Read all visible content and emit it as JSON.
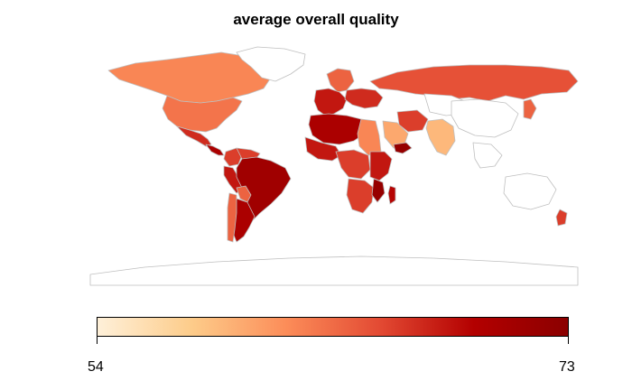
{
  "title": "average overall quality",
  "legend": {
    "min_label": "54",
    "max_label": "73",
    "min_value": 54,
    "max_value": 73,
    "colors": [
      "#fef0d9",
      "#fdcc8a",
      "#fc8d59",
      "#e34a33",
      "#b30000",
      "#8b0000"
    ]
  },
  "palette": {
    "no_data_fill": "#ffffff",
    "border": "#bfbfbf",
    "ocean": "#ffffff"
  },
  "regions": [
    {
      "name": "Canada",
      "value": 62
    },
    {
      "name": "United States",
      "value": 63
    },
    {
      "name": "Greenland",
      "value": null
    },
    {
      "name": "Mexico",
      "value": 67
    },
    {
      "name": "Central America",
      "value": 70
    },
    {
      "name": "Colombia",
      "value": 66
    },
    {
      "name": "Venezuela",
      "value": 66
    },
    {
      "name": "Peru",
      "value": 68
    },
    {
      "name": "Brazil",
      "value": 71
    },
    {
      "name": "Bolivia",
      "value": 64
    },
    {
      "name": "Argentina",
      "value": 70
    },
    {
      "name": "Chile",
      "value": 64
    },
    {
      "name": "Russia",
      "value": 65
    },
    {
      "name": "Scandinavia",
      "value": 64
    },
    {
      "name": "Western Europe",
      "value": 68
    },
    {
      "name": "Eastern Europe",
      "value": 67
    },
    {
      "name": "North Africa",
      "value": 70
    },
    {
      "name": "West Africa",
      "value": 68
    },
    {
      "name": "Egypt/Sudan",
      "value": 62
    },
    {
      "name": "Central Africa",
      "value": 66
    },
    {
      "name": "East Africa",
      "value": 68
    },
    {
      "name": "Southern Africa",
      "value": 66
    },
    {
      "name": "Mozambique",
      "value": 72
    },
    {
      "name": "Madagascar",
      "value": 69
    },
    {
      "name": "Arabian Peninsula",
      "value": 60
    },
    {
      "name": "Yemen",
      "value": 72
    },
    {
      "name": "Iran",
      "value": 66
    },
    {
      "name": "Central Asia",
      "value": null
    },
    {
      "name": "India",
      "value": 59
    },
    {
      "name": "China",
      "value": null
    },
    {
      "name": "Japan",
      "value": 64
    },
    {
      "name": "Southeast Asia",
      "value": null
    },
    {
      "name": "Australia",
      "value": null
    },
    {
      "name": "New Zealand",
      "value": 66
    },
    {
      "name": "Antarctica",
      "value": null
    }
  ]
}
